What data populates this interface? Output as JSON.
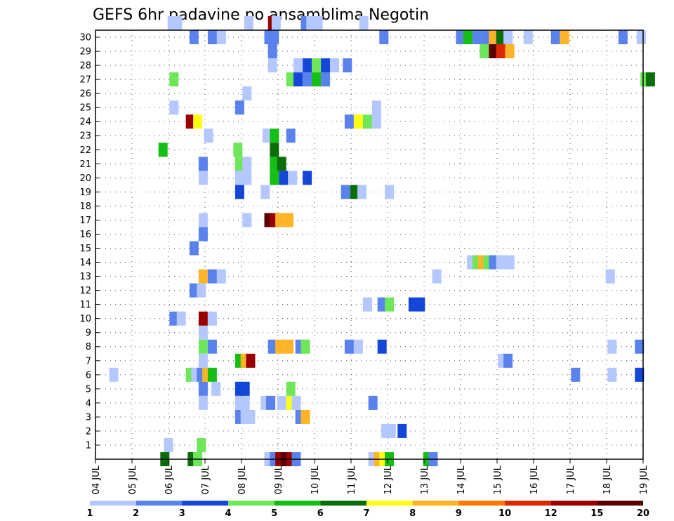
{
  "chart_data": {
    "type": "heatmap",
    "title": "GEFS 6hr padavine po ansamblima Negotin",
    "y_ticks": [
      "1",
      "2",
      "3",
      "4",
      "5",
      "6",
      "7",
      "8",
      "9",
      "10",
      "11",
      "12",
      "13",
      "14",
      "15",
      "16",
      "17",
      "18",
      "19",
      "20",
      "21",
      "22",
      "23",
      "24",
      "25",
      "26",
      "27",
      "28",
      "29",
      "30"
    ],
    "x_ticks": [
      "04 JUL",
      "05 JUL",
      "06 JUL",
      "07 JUL",
      "08 JUL",
      "09 JUL",
      "10 JUL",
      "11 JUL",
      "12 JUL",
      "13 JUL",
      "14 JUL",
      "15 JUL",
      "16 JUL",
      "17 JUL",
      "18 JUL",
      "19 JUL"
    ],
    "x_range_days": [
      0,
      15
    ],
    "y_range": [
      0,
      30
    ],
    "grid": "dotted",
    "colorbar": {
      "labels": [
        "1",
        "2",
        "3",
        "4",
        "5",
        "6",
        "7",
        "8",
        "9",
        "10",
        "12",
        "15",
        "20"
      ],
      "colors": [
        "#b4c8ff",
        "#5a82ec",
        "#1446d8",
        "#6ee65a",
        "#14be14",
        "#0a6e0a",
        "#ffff14",
        "#ffb428",
        "#ff7800",
        "#dc2800",
        "#9b0000",
        "#5a0000"
      ],
      "levels": [
        1,
        2,
        3,
        4,
        5,
        6,
        7,
        8,
        10,
        12,
        15,
        20
      ]
    },
    "columns": [
      "x_day",
      "member",
      "level"
    ],
    "cells": [
      [
        1.9,
        0,
        6
      ],
      [
        2.65,
        0,
        6
      ],
      [
        2.8,
        0,
        4
      ],
      [
        4.75,
        0,
        1
      ],
      [
        4.9,
        0,
        2
      ],
      [
        5.05,
        0,
        11
      ],
      [
        5.2,
        0,
        12
      ],
      [
        5.35,
        0,
        11
      ],
      [
        5.5,
        0,
        2
      ],
      [
        7.6,
        0,
        1
      ],
      [
        7.75,
        0,
        8
      ],
      [
        7.9,
        0,
        7
      ],
      [
        8.05,
        0,
        5
      ],
      [
        9.1,
        0,
        5
      ],
      [
        9.25,
        0,
        2
      ],
      [
        2.0,
        1,
        1
      ],
      [
        2.9,
        1,
        4
      ],
      [
        7.95,
        2,
        1
      ],
      [
        8.1,
        2,
        1
      ],
      [
        8.4,
        2,
        3
      ],
      [
        3.95,
        3,
        2
      ],
      [
        4.1,
        3,
        1
      ],
      [
        4.25,
        3,
        1
      ],
      [
        5.6,
        3,
        2
      ],
      [
        5.75,
        3,
        8
      ],
      [
        2.95,
        4,
        1
      ],
      [
        3.95,
        4,
        1
      ],
      [
        4.1,
        4,
        1
      ],
      [
        4.65,
        4,
        1
      ],
      [
        4.8,
        4,
        2
      ],
      [
        5.1,
        4,
        1
      ],
      [
        5.35,
        4,
        7
      ],
      [
        5.5,
        4,
        1
      ],
      [
        7.6,
        4,
        2
      ],
      [
        2.95,
        5,
        2
      ],
      [
        3.3,
        5,
        1
      ],
      [
        3.95,
        5,
        3
      ],
      [
        4.1,
        5,
        3
      ],
      [
        5.35,
        5,
        4
      ],
      [
        0.5,
        6,
        1
      ],
      [
        2.6,
        6,
        4
      ],
      [
        2.75,
        6,
        1
      ],
      [
        2.9,
        6,
        2
      ],
      [
        3.05,
        6,
        8
      ],
      [
        3.2,
        6,
        5
      ],
      [
        13.15,
        6,
        2
      ],
      [
        14.15,
        6,
        1
      ],
      [
        14.9,
        6,
        3
      ],
      [
        2.95,
        7,
        1
      ],
      [
        3.95,
        7,
        5
      ],
      [
        4.1,
        7,
        8
      ],
      [
        4.25,
        7,
        11
      ],
      [
        11.15,
        7,
        1
      ],
      [
        11.3,
        7,
        2
      ],
      [
        2.95,
        8,
        4
      ],
      [
        3.2,
        8,
        2
      ],
      [
        4.85,
        8,
        2
      ],
      [
        5.05,
        8,
        8
      ],
      [
        5.3,
        8,
        8
      ],
      [
        5.6,
        8,
        2
      ],
      [
        5.75,
        8,
        4
      ],
      [
        6.95,
        8,
        2
      ],
      [
        7.2,
        8,
        1
      ],
      [
        7.85,
        8,
        3
      ],
      [
        14.15,
        8,
        1
      ],
      [
        14.9,
        8,
        2
      ],
      [
        2.95,
        9,
        1
      ],
      [
        2.15,
        10,
        2
      ],
      [
        2.35,
        10,
        1
      ],
      [
        2.95,
        10,
        11
      ],
      [
        3.2,
        10,
        1
      ],
      [
        7.45,
        11,
        1
      ],
      [
        7.85,
        11,
        2
      ],
      [
        8.05,
        11,
        4
      ],
      [
        8.7,
        11,
        3
      ],
      [
        8.9,
        11,
        3
      ],
      [
        2.7,
        12,
        2
      ],
      [
        2.9,
        12,
        1
      ],
      [
        2.95,
        13,
        8
      ],
      [
        3.2,
        13,
        2
      ],
      [
        3.45,
        13,
        1
      ],
      [
        9.35,
        13,
        1
      ],
      [
        14.1,
        13,
        1
      ],
      [
        10.3,
        14,
        1
      ],
      [
        10.45,
        14,
        4
      ],
      [
        10.6,
        14,
        8
      ],
      [
        10.75,
        14,
        4
      ],
      [
        10.9,
        14,
        2
      ],
      [
        11.1,
        14,
        1
      ],
      [
        11.35,
        14,
        1
      ],
      [
        2.7,
        15,
        2
      ],
      [
        2.95,
        16,
        2
      ],
      [
        2.95,
        17,
        1
      ],
      [
        4.15,
        17,
        1
      ],
      [
        4.75,
        17,
        12
      ],
      [
        4.9,
        17,
        11
      ],
      [
        5.05,
        17,
        8
      ],
      [
        5.3,
        17,
        8
      ],
      [
        3.95,
        19,
        3
      ],
      [
        4.65,
        19,
        1
      ],
      [
        6.85,
        19,
        2
      ],
      [
        7.1,
        19,
        6
      ],
      [
        7.3,
        19,
        1
      ],
      [
        8.05,
        19,
        1
      ],
      [
        2.95,
        20,
        1
      ],
      [
        3.95,
        20,
        1
      ],
      [
        4.15,
        20,
        1
      ],
      [
        4.9,
        20,
        5
      ],
      [
        5.15,
        20,
        3
      ],
      [
        5.4,
        20,
        1
      ],
      [
        5.8,
        20,
        3
      ],
      [
        2.95,
        21,
        2
      ],
      [
        3.95,
        21,
        4
      ],
      [
        4.15,
        21,
        1
      ],
      [
        4.9,
        21,
        5
      ],
      [
        5.1,
        21,
        6
      ],
      [
        1.85,
        22,
        5
      ],
      [
        3.9,
        22,
        4
      ],
      [
        4.9,
        22,
        6
      ],
      [
        3.1,
        23,
        1
      ],
      [
        4.7,
        23,
        1
      ],
      [
        4.9,
        23,
        5
      ],
      [
        5.35,
        23,
        2
      ],
      [
        2.6,
        24,
        11
      ],
      [
        2.8,
        24,
        7
      ],
      [
        6.95,
        24,
        2
      ],
      [
        7.2,
        24,
        7
      ],
      [
        7.45,
        24,
        4
      ],
      [
        7.7,
        24,
        1
      ],
      [
        2.15,
        25,
        1
      ],
      [
        3.95,
        25,
        2
      ],
      [
        7.7,
        25,
        1
      ],
      [
        4.15,
        26,
        1
      ],
      [
        2.15,
        27,
        4
      ],
      [
        5.35,
        27,
        4
      ],
      [
        5.55,
        27,
        3
      ],
      [
        5.8,
        27,
        2
      ],
      [
        6.05,
        27,
        5
      ],
      [
        6.3,
        27,
        2
      ],
      [
        15.05,
        27,
        4
      ],
      [
        15.2,
        27,
        6
      ],
      [
        4.85,
        28,
        1
      ],
      [
        5.55,
        28,
        1
      ],
      [
        5.8,
        28,
        3
      ],
      [
        6.05,
        28,
        4
      ],
      [
        6.3,
        28,
        3
      ],
      [
        6.55,
        28,
        1
      ],
      [
        6.9,
        28,
        2
      ],
      [
        4.85,
        29,
        2
      ],
      [
        10.65,
        29,
        4
      ],
      [
        10.9,
        29,
        12
      ],
      [
        11.1,
        29,
        10
      ],
      [
        11.35,
        29,
        8
      ],
      [
        2.7,
        30,
        2
      ],
      [
        3.2,
        30,
        2
      ],
      [
        3.45,
        30,
        1
      ],
      [
        4.75,
        30,
        2
      ],
      [
        4.9,
        30,
        2
      ],
      [
        7.9,
        30,
        2
      ],
      [
        10.0,
        30,
        2
      ],
      [
        10.2,
        30,
        5
      ],
      [
        10.45,
        30,
        2
      ],
      [
        10.7,
        30,
        2
      ],
      [
        10.9,
        30,
        8
      ],
      [
        11.1,
        30,
        6
      ],
      [
        11.3,
        30,
        1
      ],
      [
        11.85,
        30,
        1
      ],
      [
        12.6,
        30,
        2
      ],
      [
        12.85,
        30,
        8
      ],
      [
        14.45,
        30,
        2
      ],
      [
        14.95,
        30,
        1
      ],
      [
        2.1,
        31,
        1
      ],
      [
        2.25,
        31,
        1
      ],
      [
        4.2,
        31,
        1
      ],
      [
        4.85,
        31,
        11
      ],
      [
        4.95,
        31,
        1
      ],
      [
        5.75,
        31,
        2
      ],
      [
        5.9,
        31,
        1
      ],
      [
        6.1,
        31,
        1
      ],
      [
        7.35,
        31,
        1
      ]
    ]
  }
}
